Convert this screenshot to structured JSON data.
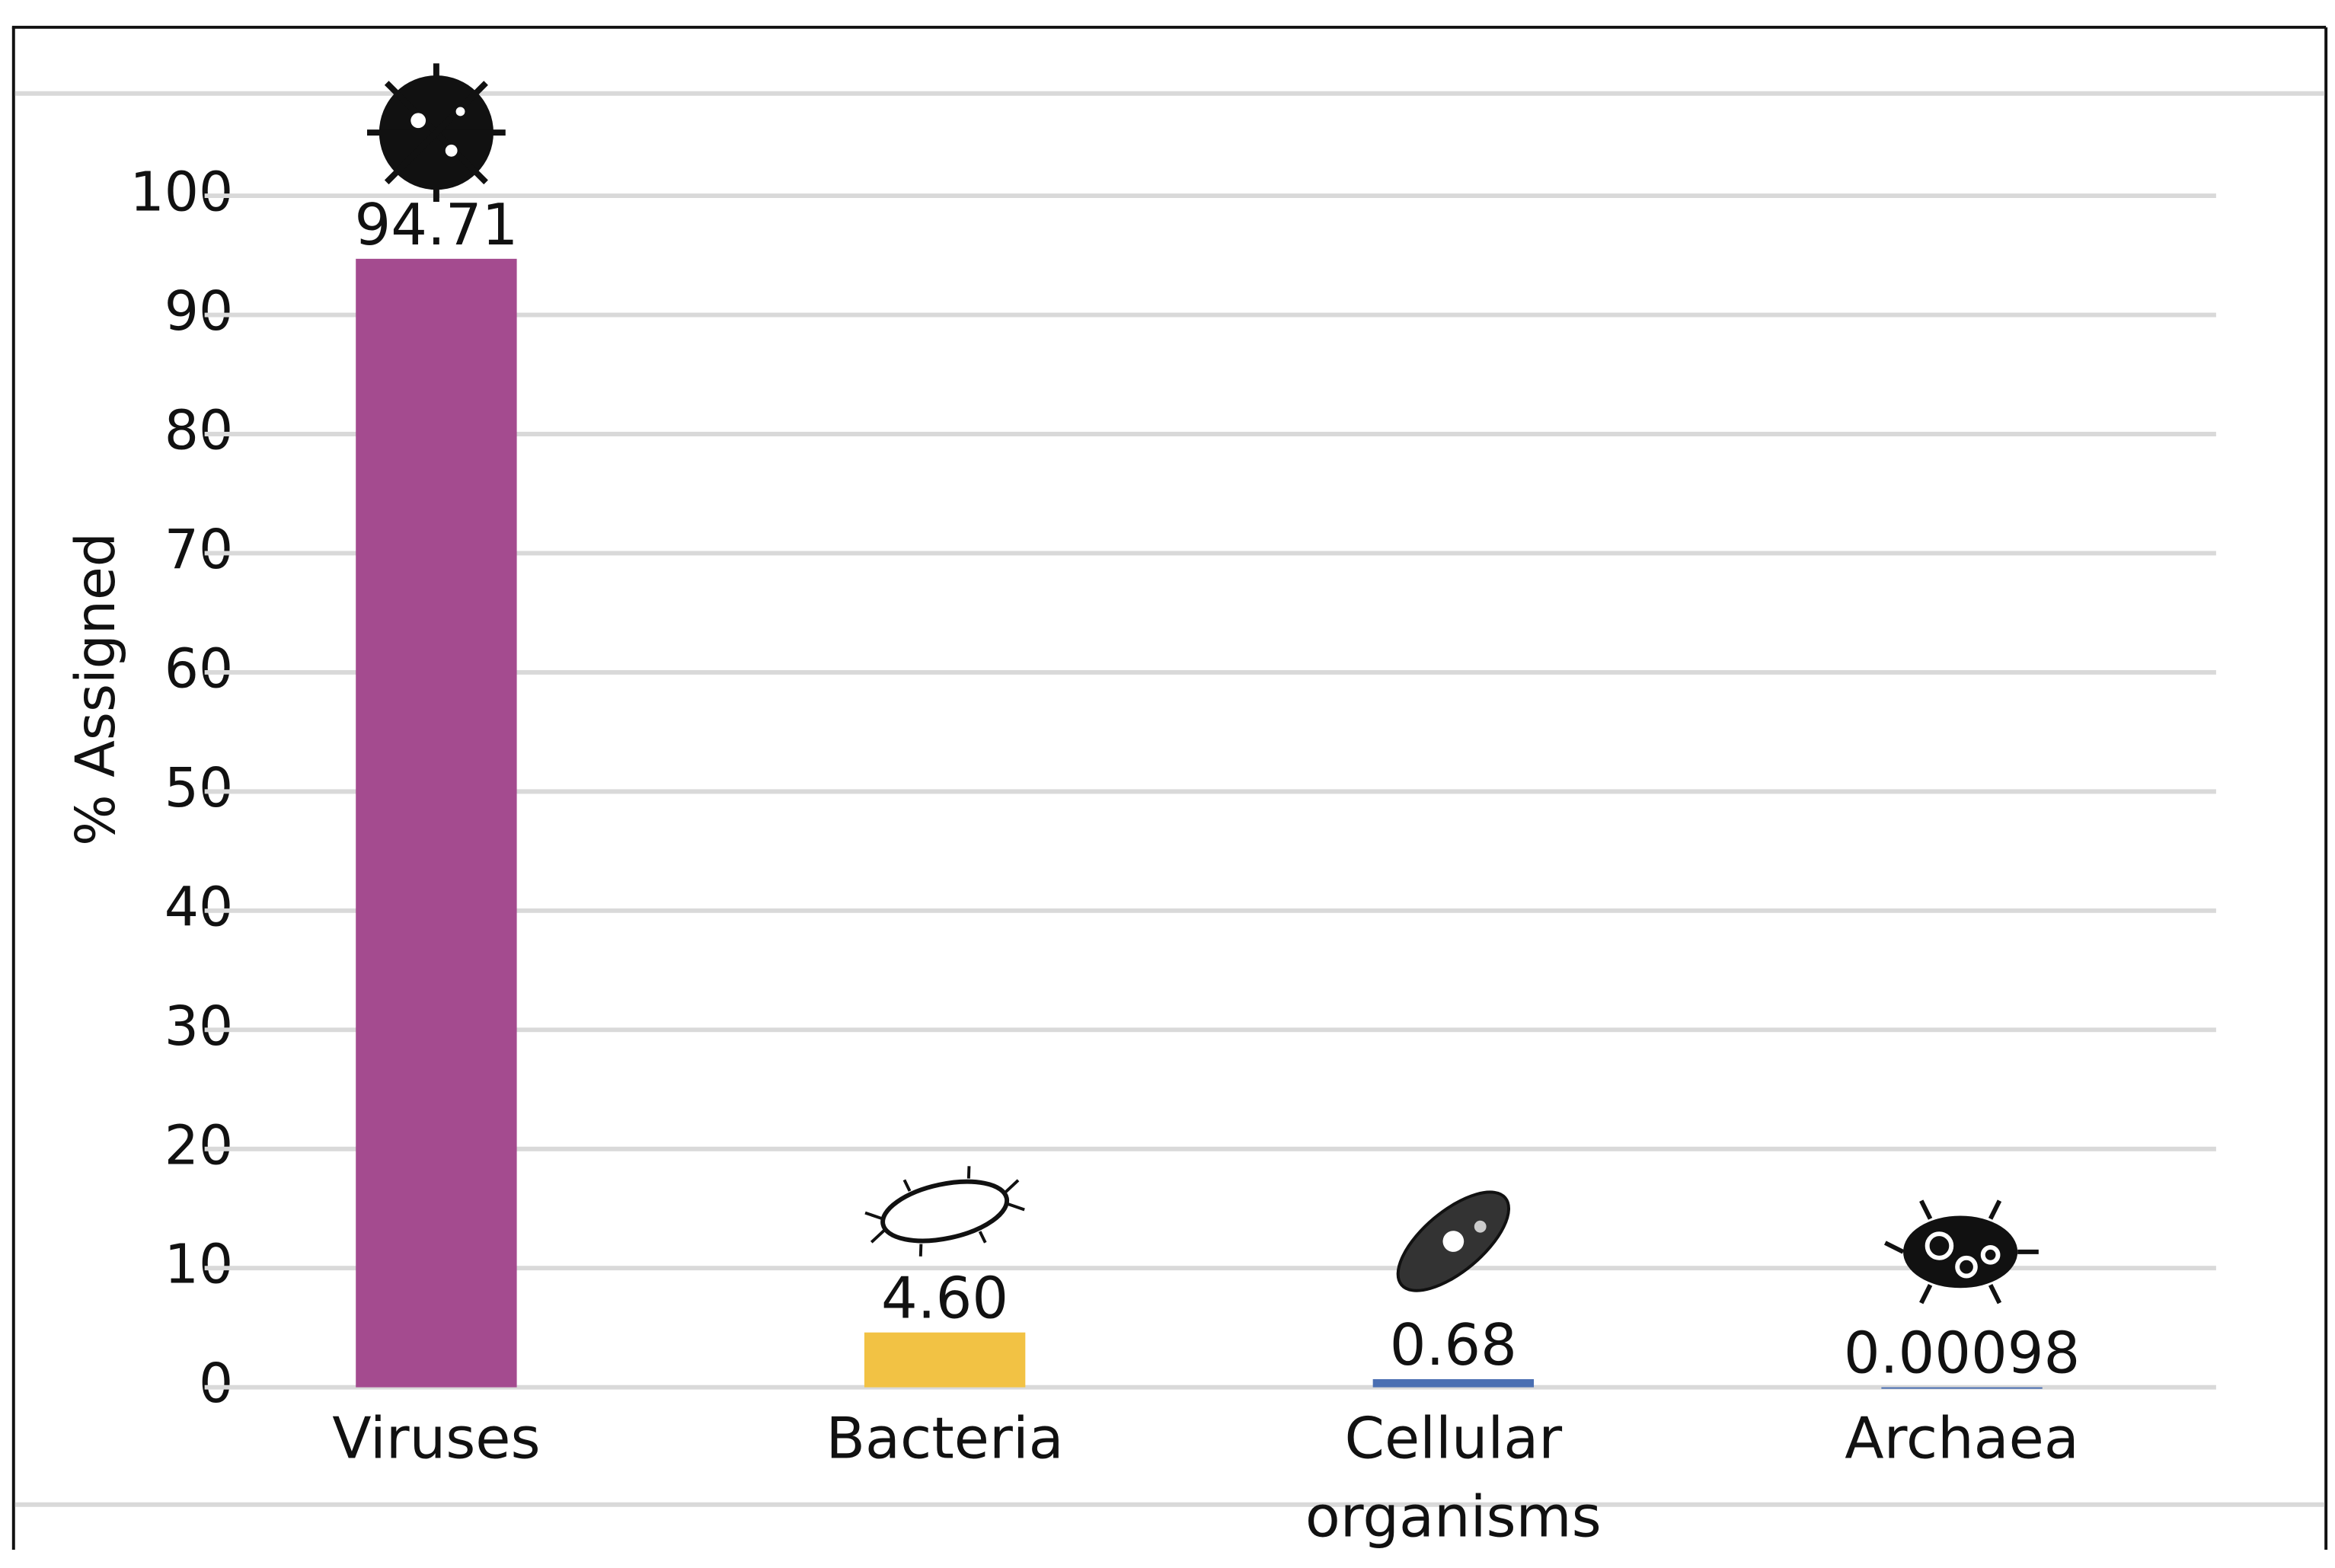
{
  "chart_data": {
    "type": "bar",
    "y_label": "% Assigned",
    "categories": [
      "Viruses",
      "Bacteria",
      "Cellular organisms",
      "Archaea"
    ],
    "values": [
      94.71,
      4.6,
      0.68,
      0.00098
    ],
    "value_labels": [
      "94.71",
      "4.60",
      "0.68",
      "0.00098"
    ],
    "colors": [
      "#a44b8f",
      "#f2c244",
      "#4a6fb2",
      "#4a6fb2"
    ],
    "ylim": [
      0,
      100
    ],
    "yticks": [
      0,
      10,
      20,
      30,
      40,
      50,
      60,
      70,
      80,
      90,
      100
    ],
    "grid": true
  }
}
